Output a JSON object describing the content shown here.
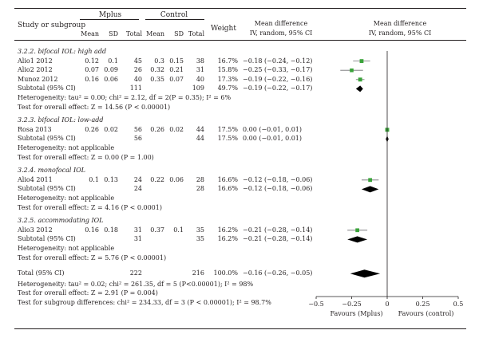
{
  "header": {
    "study_col": "Study or subgroup",
    "group1": "Mplus",
    "group2": "Control",
    "weight": "Weight",
    "md1_title": "Mean difference",
    "md1_sub": "IV, random, 95% CI",
    "md2_title": "Mean difference",
    "md2_sub": "IV, random, 95% CI",
    "mean": "Mean",
    "sd": "SD",
    "total": "Total"
  },
  "subgroups": [
    {
      "title": "3.2.2. bifocal IOL: high add",
      "studies": [
        {
          "name": "Alio1 2012",
          "m1": "0.12",
          "sd1": "0.1",
          "n1": "45",
          "m2": "0.3",
          "sd2": "0.15",
          "n2": "38",
          "weight": "16.7%",
          "ci": "−0.18 (−0.24, −0.12)"
        },
        {
          "name": "Alio2 2012",
          "m1": "0.07",
          "sd1": "0.09",
          "n1": "26",
          "m2": "0.32",
          "sd2": "0.21",
          "n2": "31",
          "weight": "15.8%",
          "ci": "−0.25 (−0.33, −0.17)"
        },
        {
          "name": "Munoz 2012",
          "m1": "0.16",
          "sd1": "0.06",
          "n1": "40",
          "m2": "0.35",
          "sd2": "0.07",
          "n2": "40",
          "weight": "17.3%",
          "ci": "−0.19 (−0.22, −0.16)"
        }
      ],
      "subtotal": {
        "label": "Subtotal (95% CI)",
        "n1": "111",
        "n2": "109",
        "weight": "49.7%",
        "ci": "−0.19 (−0.22, −0.17)"
      },
      "het": "Heterogeneity: tau² = 0.00; chi² = 2.12, df = 2(P = 0.35); I² = 6%",
      "test": "Test for overall effect: Z = 14.56 (P < 0.00001)"
    },
    {
      "title": "3.2.3. bifocal IOL: low-add",
      "studies": [
        {
          "name": "Rosa 2013",
          "m1": "0.26",
          "sd1": "0.02",
          "n1": "56",
          "m2": "0.26",
          "sd2": "0.02",
          "n2": "44",
          "weight": "17.5%",
          "ci": "0.00 (−0.01, 0.01)"
        }
      ],
      "subtotal": {
        "label": "Subtotal (95% CI)",
        "n1": "56",
        "n2": "44",
        "weight": "17.5%",
        "ci": "0.00 (−0.01, 0.01)"
      },
      "het": "Heterogeneity: not applicable",
      "test": "Test for overall effect: Z = 0.00 (P = 1.00)"
    },
    {
      "title": "3.2.4. monofocal IOL",
      "studies": [
        {
          "name": "Alio4 2011",
          "m1": "0.1",
          "sd1": "0.13",
          "n1": "24",
          "m2": "0.22",
          "sd2": "0.06",
          "n2": "28",
          "weight": "16.6%",
          "ci": "−0.12 (−0.18, −0.06)"
        }
      ],
      "subtotal": {
        "label": "Subtotal (95% CI)",
        "n1": "24",
        "n2": "28",
        "weight": "16.6%",
        "ci": "−0.12 (−0.18, −0.06)"
      },
      "het": "Heterogeneity: not applicable",
      "test": "Test for overall effect: Z = 4.16 (P < 0.0001)"
    },
    {
      "title": "3.2.5. accommodating IOL",
      "studies": [
        {
          "name": "Alio3 2012",
          "m1": "0.16",
          "sd1": "0.18",
          "n1": "31",
          "m2": "0.37",
          "sd2": "0.1",
          "n2": "35",
          "weight": "16.2%",
          "ci": "−0.21 (−0.28, −0.14)"
        }
      ],
      "subtotal": {
        "label": "Subtotal (95% CI)",
        "n1": "31",
        "n2": "35",
        "weight": "16.2%",
        "ci": "−0.21 (−0.28, −0.14)"
      },
      "het": "Heterogeneity: not applicable",
      "test": "Test for overall effect: Z = 5.76 (P < 0.00001)"
    }
  ],
  "total": {
    "label": "Total (95% CI)",
    "n1": "222",
    "n2": "216",
    "weight": "100.0%",
    "ci": "−0.16 (−0.26, −0.05)",
    "het": "Heterogeneity: tau² = 0.02; chi² = 261.35, df = 5 (P<0.00001); I² = 98%",
    "test": "Test for overall effect: Z = 2.91 (P = 0.004)",
    "subgroup_diff": "Test for subgroup differences: chi² = 234.33, df = 3 (P < 0.00001); I² = 98.7%"
  },
  "favours_left": "Favours (Mplus)",
  "favours_right": "Favours (control)",
  "colors": {
    "text": "#231f20",
    "study_marker": "#3aa33a",
    "ci_line": "#6d6e71",
    "diamond": "#000000"
  },
  "chart_data": {
    "type": "forest",
    "xlim": [
      -0.5,
      0.5
    ],
    "xticks": [
      -0.5,
      -0.25,
      0,
      0.25,
      0.5
    ],
    "xtick_labels": [
      "−0.5",
      "−0.25",
      "0",
      "0.25",
      "0.5"
    ],
    "studies": [
      {
        "name": "Alio1 2012",
        "md": -0.18,
        "lo": -0.24,
        "hi": -0.12,
        "weight": 16.7
      },
      {
        "name": "Alio2 2012",
        "md": -0.25,
        "lo": -0.33,
        "hi": -0.17,
        "weight": 15.8
      },
      {
        "name": "Munoz 2012",
        "md": -0.19,
        "lo": -0.22,
        "hi": -0.16,
        "weight": 17.3
      },
      {
        "name": "Rosa 2013",
        "md": 0.0,
        "lo": -0.01,
        "hi": 0.01,
        "weight": 17.5
      },
      {
        "name": "Alio4 2011",
        "md": -0.12,
        "lo": -0.18,
        "hi": -0.06,
        "weight": 16.6
      },
      {
        "name": "Alio3 2012",
        "md": -0.21,
        "lo": -0.28,
        "hi": -0.14,
        "weight": 16.2
      }
    ],
    "subtotals": [
      {
        "name": "Subtotal bifocal high add",
        "md": -0.19,
        "lo": -0.22,
        "hi": -0.17
      },
      {
        "name": "Subtotal bifocal low-add",
        "md": 0.0,
        "lo": -0.01,
        "hi": 0.01
      },
      {
        "name": "Subtotal monofocal",
        "md": -0.12,
        "lo": -0.18,
        "hi": -0.06
      },
      {
        "name": "Subtotal accommodating",
        "md": -0.21,
        "lo": -0.28,
        "hi": -0.14
      }
    ],
    "overall": {
      "name": "Total",
      "md": -0.16,
      "lo": -0.26,
      "hi": -0.05
    }
  }
}
